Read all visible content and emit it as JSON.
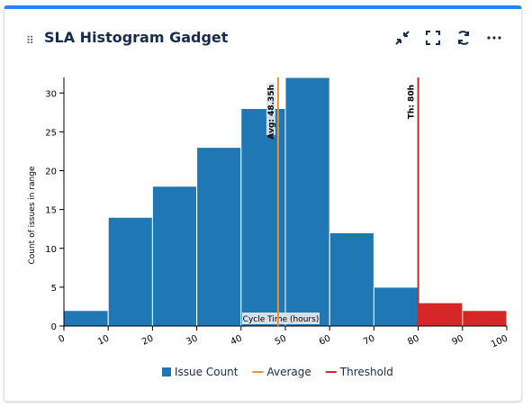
{
  "gadget": {
    "title": "SLA Histogram Gadget",
    "icons": [
      "collapse-icon",
      "fullscreen-icon",
      "refresh-icon",
      "more-icon"
    ]
  },
  "chart_data": {
    "type": "bar",
    "x_ticks": [
      0,
      10,
      20,
      30,
      40,
      50,
      60,
      70,
      80,
      90,
      100
    ],
    "y_ticks": [
      0,
      5,
      10,
      15,
      20,
      25,
      30
    ],
    "xlim": [
      0,
      100
    ],
    "ylim": [
      0,
      32
    ],
    "ylabel": "Count of issues in range",
    "xlabel": "Cycle Time (hours)",
    "bins": [
      {
        "x0": 0,
        "x1": 10,
        "value": 2
      },
      {
        "x0": 10,
        "x1": 20,
        "value": 14
      },
      {
        "x0": 20,
        "x1": 30,
        "value": 18
      },
      {
        "x0": 30,
        "x1": 40,
        "value": 23
      },
      {
        "x0": 40,
        "x1": 50,
        "value": 28
      },
      {
        "x0": 50,
        "x1": 60,
        "value": 32
      },
      {
        "x0": 60,
        "x1": 70,
        "value": 12
      },
      {
        "x0": 70,
        "x1": 80,
        "value": 5
      },
      {
        "x0": 80,
        "x1": 90,
        "value": 3
      },
      {
        "x0": 90,
        "x1": 100,
        "value": 2
      }
    ],
    "average": {
      "value": 48.35,
      "label": "Avg: 48.35h",
      "color": "#f28e2b"
    },
    "threshold": {
      "value": 80,
      "label": "Th: 80h",
      "color": "#d62728"
    },
    "colors": {
      "normal": "#1f77b4",
      "over": "#d62728"
    },
    "legend": {
      "placement": "bottom",
      "items": [
        {
          "name": "Issue Count",
          "kind": "box",
          "color": "#1f77b4"
        },
        {
          "name": "Average",
          "kind": "line",
          "color": "#f28e2b"
        },
        {
          "name": "Threshold",
          "kind": "line",
          "color": "#d62728"
        }
      ]
    }
  }
}
